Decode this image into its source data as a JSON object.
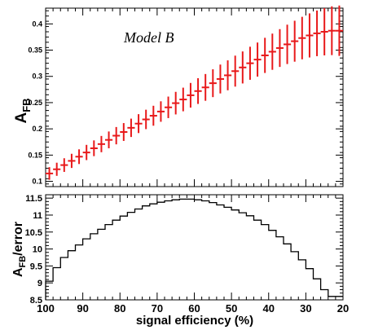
{
  "chart_data": [
    {
      "type": "scatter",
      "annotation": "Model B",
      "ylabel": "A",
      "ylabel_sub": "FB",
      "xlim": [
        100,
        20
      ],
      "ylim": [
        0.09,
        0.43
      ],
      "yticks": [
        0.1,
        0.15,
        0.2,
        0.25,
        0.3,
        0.35,
        0.4
      ],
      "ytick_labels": [
        "0.1",
        "0.15",
        "0.2",
        "0.25",
        "0.3",
        "0.35",
        "0.4"
      ],
      "series": [
        {
          "color": "#e8191a",
          "x": [
            99,
            97,
            95,
            93,
            91,
            89,
            87,
            85,
            83,
            81,
            79,
            77,
            75,
            73,
            71,
            69,
            67,
            65,
            63,
            61,
            59,
            57,
            55,
            53,
            51,
            49,
            47,
            45,
            43,
            41,
            39,
            37,
            35,
            33,
            31,
            29,
            27,
            25,
            23,
            21
          ],
          "y": [
            0.115,
            0.123,
            0.131,
            0.139,
            0.147,
            0.155,
            0.163,
            0.171,
            0.179,
            0.187,
            0.194,
            0.202,
            0.21,
            0.218,
            0.225,
            0.233,
            0.241,
            0.249,
            0.256,
            0.264,
            0.272,
            0.279,
            0.287,
            0.295,
            0.302,
            0.31,
            0.317,
            0.325,
            0.332,
            0.34,
            0.347,
            0.354,
            0.361,
            0.367,
            0.373,
            0.378,
            0.382,
            0.385,
            0.387,
            0.387
          ],
          "err": [
            0.012,
            0.0125,
            0.013,
            0.0135,
            0.014,
            0.0145,
            0.015,
            0.0155,
            0.016,
            0.0165,
            0.017,
            0.0175,
            0.018,
            0.0185,
            0.019,
            0.0195,
            0.0205,
            0.0215,
            0.0225,
            0.0235,
            0.0245,
            0.0255,
            0.0265,
            0.0275,
            0.0285,
            0.0295,
            0.0305,
            0.0315,
            0.0325,
            0.0335,
            0.0345,
            0.036,
            0.0375,
            0.039,
            0.0405,
            0.042,
            0.0435,
            0.045,
            0.0465,
            0.048
          ]
        }
      ]
    },
    {
      "type": "line",
      "ylabel": "A",
      "ylabel_sub": "FB",
      "ylabel_suffix": "/error",
      "xlabel": "signal efficiency (%)",
      "xlim": [
        100,
        20
      ],
      "ylim": [
        8.5,
        11.6
      ],
      "xticks": [
        100,
        90,
        80,
        70,
        60,
        50,
        40,
        30,
        20
      ],
      "xtick_labels": [
        "100",
        "90",
        "80",
        "70",
        "60",
        "50",
        "40",
        "30",
        "20"
      ],
      "yticks": [
        8.5,
        9,
        9.5,
        10,
        10.5,
        11,
        11.5
      ],
      "ytick_labels": [
        "8.5",
        "9",
        "9.5",
        "10",
        "10.5",
        "11",
        "11.5"
      ],
      "series": [
        {
          "color": "#000000",
          "step": 2,
          "x": [
            99,
            97,
            95,
            93,
            91,
            89,
            87,
            85,
            83,
            81,
            79,
            77,
            75,
            73,
            71,
            69,
            67,
            65,
            63,
            61,
            59,
            57,
            55,
            53,
            51,
            49,
            47,
            45,
            43,
            41,
            39,
            37,
            35,
            33,
            31,
            29,
            27,
            25,
            23,
            21
          ],
          "y": [
            9.05,
            9.45,
            9.75,
            9.95,
            10.12,
            10.3,
            10.45,
            10.58,
            10.72,
            10.85,
            10.97,
            11.08,
            11.18,
            11.27,
            11.33,
            11.38,
            11.42,
            11.45,
            11.47,
            11.47,
            11.45,
            11.42,
            11.37,
            11.3,
            11.23,
            11.15,
            11.07,
            10.98,
            10.85,
            10.72,
            10.55,
            10.36,
            10.15,
            9.92,
            9.68,
            9.42,
            9.12,
            8.8,
            8.6,
            8.6
          ]
        }
      ]
    }
  ]
}
